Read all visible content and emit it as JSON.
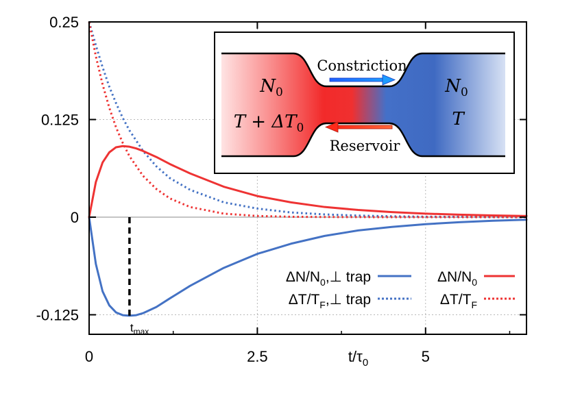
{
  "chart_data": {
    "type": "line",
    "x_axis": {
      "label": "t/τ",
      "label_subscript": "0",
      "range": [
        0,
        6.5
      ],
      "ticks": [
        {
          "value": 0,
          "label": "0"
        },
        {
          "value": 2.5,
          "label": "2.5"
        },
        {
          "value": 5,
          "label": "5"
        }
      ],
      "grid_values": [
        2.5,
        5
      ]
    },
    "y_axis": {
      "label": "",
      "range": [
        -0.15,
        0.25
      ],
      "ticks": [
        {
          "value": 0.25,
          "label": "0.25"
        },
        {
          "value": 0.125,
          "label": "0.125"
        },
        {
          "value": 0,
          "label": "0"
        },
        {
          "value": -0.125,
          "label": "-0.125"
        }
      ],
      "grid_values": [
        0.125,
        -0.125
      ]
    },
    "zero_line": true,
    "series": [
      {
        "name": "ΔN/N0,⊥ trap",
        "color": "#4472c4",
        "dash": "solid",
        "x": [
          0,
          0.1,
          0.2,
          0.3,
          0.4,
          0.5,
          0.6,
          0.7,
          0.8,
          1.0,
          1.2,
          1.5,
          2.0,
          2.5,
          3.0,
          3.5,
          4.0,
          4.5,
          5.0,
          5.5,
          6.0,
          6.5
        ],
        "y": [
          0,
          -0.06,
          -0.095,
          -0.113,
          -0.122,
          -0.1255,
          -0.1262,
          -0.1255,
          -0.123,
          -0.115,
          -0.104,
          -0.088,
          -0.065,
          -0.047,
          -0.034,
          -0.024,
          -0.017,
          -0.0125,
          -0.009,
          -0.0065,
          -0.0046,
          -0.0033
        ]
      },
      {
        "name": "ΔT/TF,⊥ trap",
        "color": "#4472c4",
        "dash": "dotted",
        "x": [
          0,
          0.1,
          0.2,
          0.3,
          0.4,
          0.5,
          0.6,
          0.8,
          1.0,
          1.2,
          1.5,
          2.0,
          2.5,
          3.0,
          3.5,
          4.0,
          4.5,
          5.0,
          5.5,
          6.0,
          6.5
        ],
        "y": [
          0.25,
          0.22,
          0.192,
          0.167,
          0.146,
          0.127,
          0.111,
          0.085,
          0.065,
          0.05,
          0.035,
          0.019,
          0.011,
          0.006,
          0.0035,
          0.002,
          0.0011,
          0.0006,
          0.0004,
          0.0002,
          0.0001
        ]
      },
      {
        "name": "ΔN/N0",
        "color": "#ee3333",
        "dash": "solid",
        "x": [
          0,
          0.1,
          0.2,
          0.3,
          0.4,
          0.5,
          0.6,
          0.7,
          0.8,
          1.0,
          1.2,
          1.5,
          2.0,
          2.5,
          3.0,
          3.5,
          4.0,
          4.5,
          5.0,
          5.5,
          6.0,
          6.5
        ],
        "y": [
          0,
          0.045,
          0.07,
          0.083,
          0.0895,
          0.091,
          0.0902,
          0.088,
          0.0848,
          0.077,
          0.068,
          0.056,
          0.039,
          0.027,
          0.019,
          0.013,
          0.0092,
          0.0065,
          0.0045,
          0.0032,
          0.0022,
          0.0015
        ]
      },
      {
        "name": "ΔT/TF",
        "color": "#ee3333",
        "dash": "dotted",
        "x": [
          0,
          0.1,
          0.2,
          0.3,
          0.4,
          0.5,
          0.6,
          0.8,
          1.0,
          1.2,
          1.5,
          2.0,
          2.5,
          3.0,
          3.5,
          4.0,
          4.5,
          5.0,
          5.5,
          6.0,
          6.5
        ],
        "y": [
          0.25,
          0.206,
          0.17,
          0.14,
          0.115,
          0.095,
          0.078,
          0.053,
          0.036,
          0.024,
          0.013,
          0.0045,
          0.0015,
          0.0005,
          0.0002,
          0.0001,
          0,
          0,
          0,
          0,
          0
        ]
      }
    ],
    "annotations": [
      {
        "type": "vertical-dashed-marker",
        "x": 0.6,
        "y_from": 0,
        "y_to": -0.1262,
        "label": "t",
        "label_subscript": "max"
      }
    ],
    "legend": {
      "placement": "bottom-right",
      "entries": [
        {
          "series": 0,
          "text": "ΔN/N",
          "sub": "0",
          "suffix": ",⊥ trap"
        },
        {
          "series": 2,
          "text": "ΔN/N",
          "sub": "0",
          "suffix": ""
        },
        {
          "series": 1,
          "text": "ΔT/T",
          "sub": "F",
          "suffix": ",⊥ trap"
        },
        {
          "series": 3,
          "text": "ΔT/T",
          "sub": "F",
          "suffix": ""
        }
      ]
    },
    "inset": {
      "placement": "top-right",
      "left_reservoir": {
        "line1": "N",
        "line1_sub": "0",
        "line2": "T + ΔT",
        "line2_sub": "0",
        "color": "#ee3333"
      },
      "right_reservoir": {
        "line1": "N",
        "line1_sub": "0",
        "line2": "T",
        "color": "#3a66c4"
      },
      "top_arrow_label": "Constriction",
      "top_arrow_color": "#2a44dd",
      "bottom_arrow_label": "Reservoir",
      "bottom_arrow_color": "#ee3333"
    }
  }
}
